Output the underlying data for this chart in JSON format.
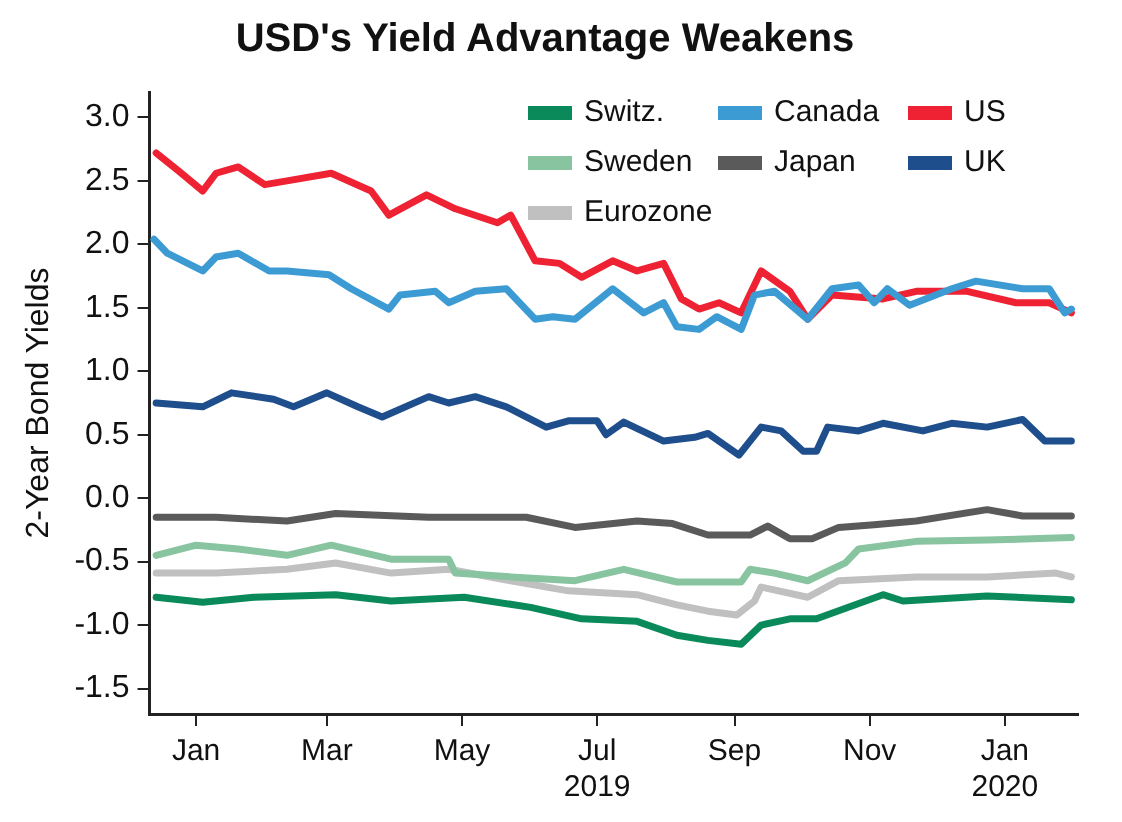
{
  "chart_data": {
    "type": "line",
    "title": "USD's Yield Advantage Weakens",
    "ylabel": "2-Year Bond Yields",
    "xlim": [
      "2018-12-11",
      "2020-02-03"
    ],
    "xticks": [
      {
        "value": "2019-01-01",
        "label": "Jan"
      },
      {
        "value": "2019-03-01",
        "label": "Mar"
      },
      {
        "value": "2019-05-01",
        "label": "May"
      },
      {
        "value": "2019-07-01",
        "label": "Jul\n2019"
      },
      {
        "value": "2019-09-01",
        "label": "Sep"
      },
      {
        "value": "2019-11-01",
        "label": "Nov"
      },
      {
        "value": "2020-01-01",
        "label": "Jan\n2020"
      }
    ],
    "ylim": [
      -1.7,
      3.2
    ],
    "yticks": [
      {
        "value": -1.5,
        "label": "-1.5"
      },
      {
        "value": -1,
        "label": "-1.0"
      },
      {
        "value": -0.5,
        "label": "-0.5"
      },
      {
        "value": 0,
        "label": "0.0"
      },
      {
        "value": 0.5,
        "label": "0.5"
      },
      {
        "value": 1,
        "label": "1.0"
      },
      {
        "value": 1.5,
        "label": "1.5"
      },
      {
        "value": 2,
        "label": "2.0"
      },
      {
        "value": 2.5,
        "label": "2.5"
      },
      {
        "value": 3,
        "label": "3.0"
      }
    ],
    "grid": false,
    "legend": "top right",
    "marker": "none",
    "line_style": "solid",
    "series": [
      {
        "name": "Switz.",
        "color": "#0a8a5a",
        "x": [
          "2018-12-14",
          "2019-01-04",
          "2019-01-27",
          "2019-03-05",
          "2019-03-30",
          "2019-05-02",
          "2019-06-01",
          "2019-06-24",
          "2019-07-19",
          "2019-08-06",
          "2019-08-20",
          "2019-09-04",
          "2019-09-13",
          "2019-09-26",
          "2019-10-08",
          "2019-11-07",
          "2019-11-16",
          "2019-12-24",
          "2020-01-31"
        ],
        "values": [
          -0.78,
          -0.82,
          -0.78,
          -0.76,
          -0.81,
          -0.78,
          -0.86,
          -0.95,
          -0.97,
          -1.08,
          -1.12,
          -1.15,
          -1.0,
          -0.95,
          -0.95,
          -0.76,
          -0.81,
          -0.77,
          -0.8
        ]
      },
      {
        "name": "Canada",
        "color": "#3d9bd4",
        "x": [
          "2018-12-13",
          "2018-12-19",
          "2019-01-04",
          "2019-01-10",
          "2019-01-20",
          "2019-02-03",
          "2019-02-11",
          "2019-03-02",
          "2019-03-12",
          "2019-03-29",
          "2019-04-03",
          "2019-04-19",
          "2019-04-25",
          "2019-05-07",
          "2019-05-21",
          "2019-06-03",
          "2019-06-11",
          "2019-06-21",
          "2019-07-08",
          "2019-07-22",
          "2019-07-31",
          "2019-08-06",
          "2019-08-16",
          "2019-08-24",
          "2019-09-04",
          "2019-09-10",
          "2019-09-19",
          "2019-10-04",
          "2019-10-15",
          "2019-10-27",
          "2019-11-03",
          "2019-11-09",
          "2019-11-19",
          "2019-12-08",
          "2019-12-19",
          "2020-01-09",
          "2020-01-21",
          "2020-01-28",
          "2020-01-31"
        ],
        "values": [
          2.04,
          1.93,
          1.79,
          1.9,
          1.93,
          1.79,
          1.79,
          1.76,
          1.65,
          1.49,
          1.6,
          1.63,
          1.54,
          1.63,
          1.65,
          1.41,
          1.43,
          1.41,
          1.65,
          1.46,
          1.54,
          1.35,
          1.33,
          1.43,
          1.33,
          1.6,
          1.63,
          1.41,
          1.65,
          1.68,
          1.54,
          1.65,
          1.52,
          1.65,
          1.71,
          1.65,
          1.65,
          1.46,
          1.49
        ]
      },
      {
        "name": "US",
        "color": "#ee2233",
        "x": [
          "2018-12-14",
          "2018-12-24",
          "2019-01-04",
          "2019-01-10",
          "2019-01-20",
          "2019-02-01",
          "2019-02-11",
          "2019-03-03",
          "2019-03-21",
          "2019-03-29",
          "2019-04-15",
          "2019-04-28",
          "2019-05-17",
          "2019-05-23",
          "2019-06-03",
          "2019-06-14",
          "2019-06-24",
          "2019-07-08",
          "2019-07-19",
          "2019-07-31",
          "2019-08-08",
          "2019-08-16",
          "2019-08-25",
          "2019-09-04",
          "2019-09-13",
          "2019-09-26",
          "2019-10-04",
          "2019-10-15",
          "2019-11-07",
          "2019-11-22",
          "2019-12-15",
          "2020-01-06",
          "2020-01-21",
          "2020-01-31"
        ],
        "values": [
          2.72,
          2.58,
          2.42,
          2.56,
          2.61,
          2.47,
          2.5,
          2.56,
          2.42,
          2.23,
          2.39,
          2.28,
          2.17,
          2.23,
          1.87,
          1.85,
          1.74,
          1.87,
          1.79,
          1.85,
          1.57,
          1.49,
          1.54,
          1.46,
          1.79,
          1.63,
          1.41,
          1.6,
          1.57,
          1.63,
          1.63,
          1.54,
          1.54,
          1.46
        ]
      },
      {
        "name": "Sweden",
        "color": "#88c4a0",
        "x": [
          "2018-12-14",
          "2019-01-01",
          "2019-01-20",
          "2019-02-11",
          "2019-03-03",
          "2019-03-30",
          "2019-04-25",
          "2019-04-28",
          "2019-05-23",
          "2019-06-21",
          "2019-07-13",
          "2019-08-06",
          "2019-09-04",
          "2019-09-08",
          "2019-09-19",
          "2019-10-04",
          "2019-10-21",
          "2019-10-27",
          "2019-11-22",
          "2019-12-24",
          "2020-01-31"
        ],
        "values": [
          -0.45,
          -0.37,
          -0.4,
          -0.45,
          -0.37,
          -0.48,
          -0.48,
          -0.59,
          -0.62,
          -0.65,
          -0.56,
          -0.66,
          -0.66,
          -0.56,
          -0.59,
          -0.65,
          -0.51,
          -0.4,
          -0.34,
          -0.33,
          -0.31
        ]
      },
      {
        "name": "Japan",
        "color": "#5a5a5a",
        "x": [
          "2018-12-14",
          "2019-01-10",
          "2019-02-11",
          "2019-03-05",
          "2019-04-16",
          "2019-05-30",
          "2019-06-21",
          "2019-07-19",
          "2019-08-04",
          "2019-08-20",
          "2019-09-08",
          "2019-09-16",
          "2019-09-26",
          "2019-10-06",
          "2019-10-18",
          "2019-11-03",
          "2019-11-22",
          "2019-12-24",
          "2020-01-09",
          "2020-01-31"
        ],
        "values": [
          -0.15,
          -0.15,
          -0.18,
          -0.12,
          -0.15,
          -0.15,
          -0.23,
          -0.18,
          -0.2,
          -0.29,
          -0.29,
          -0.22,
          -0.32,
          -0.32,
          -0.23,
          -0.21,
          -0.18,
          -0.09,
          -0.14,
          -0.14
        ]
      },
      {
        "name": "UK",
        "color": "#1f4e8c",
        "x": [
          "2018-12-14",
          "2019-01-04",
          "2019-01-17",
          "2019-02-05",
          "2019-02-14",
          "2019-03-01",
          "2019-03-15",
          "2019-03-26",
          "2019-04-16",
          "2019-04-25",
          "2019-05-07",
          "2019-05-21",
          "2019-06-08",
          "2019-06-18",
          "2019-07-01",
          "2019-07-05",
          "2019-07-13",
          "2019-07-31",
          "2019-08-14",
          "2019-08-20",
          "2019-09-03",
          "2019-09-13",
          "2019-09-22",
          "2019-10-02",
          "2019-10-08",
          "2019-10-13",
          "2019-10-27",
          "2019-11-07",
          "2019-11-25",
          "2019-12-08",
          "2019-12-24",
          "2020-01-09",
          "2020-01-19",
          "2020-01-31"
        ],
        "values": [
          0.75,
          0.72,
          0.83,
          0.78,
          0.72,
          0.83,
          0.72,
          0.64,
          0.8,
          0.75,
          0.8,
          0.72,
          0.56,
          0.61,
          0.61,
          0.5,
          0.6,
          0.45,
          0.48,
          0.51,
          0.34,
          0.56,
          0.53,
          0.37,
          0.37,
          0.56,
          0.53,
          0.59,
          0.53,
          0.59,
          0.56,
          0.62,
          0.45,
          0.45
        ]
      },
      {
        "name": "Eurozone",
        "color": "#c0c0c0",
        "x": [
          "2018-12-14",
          "2019-01-10",
          "2019-02-11",
          "2019-03-05",
          "2019-03-30",
          "2019-04-25",
          "2019-05-23",
          "2019-06-18",
          "2019-07-19",
          "2019-08-06",
          "2019-08-20",
          "2019-09-02",
          "2019-09-10",
          "2019-09-13",
          "2019-10-04",
          "2019-10-18",
          "2019-11-22",
          "2019-12-24",
          "2020-01-24",
          "2020-01-31"
        ],
        "values": [
          -0.59,
          -0.59,
          -0.56,
          -0.51,
          -0.59,
          -0.56,
          -0.65,
          -0.73,
          -0.76,
          -0.84,
          -0.89,
          -0.92,
          -0.81,
          -0.7,
          -0.78,
          -0.65,
          -0.62,
          -0.62,
          -0.59,
          -0.62
        ]
      }
    ]
  }
}
